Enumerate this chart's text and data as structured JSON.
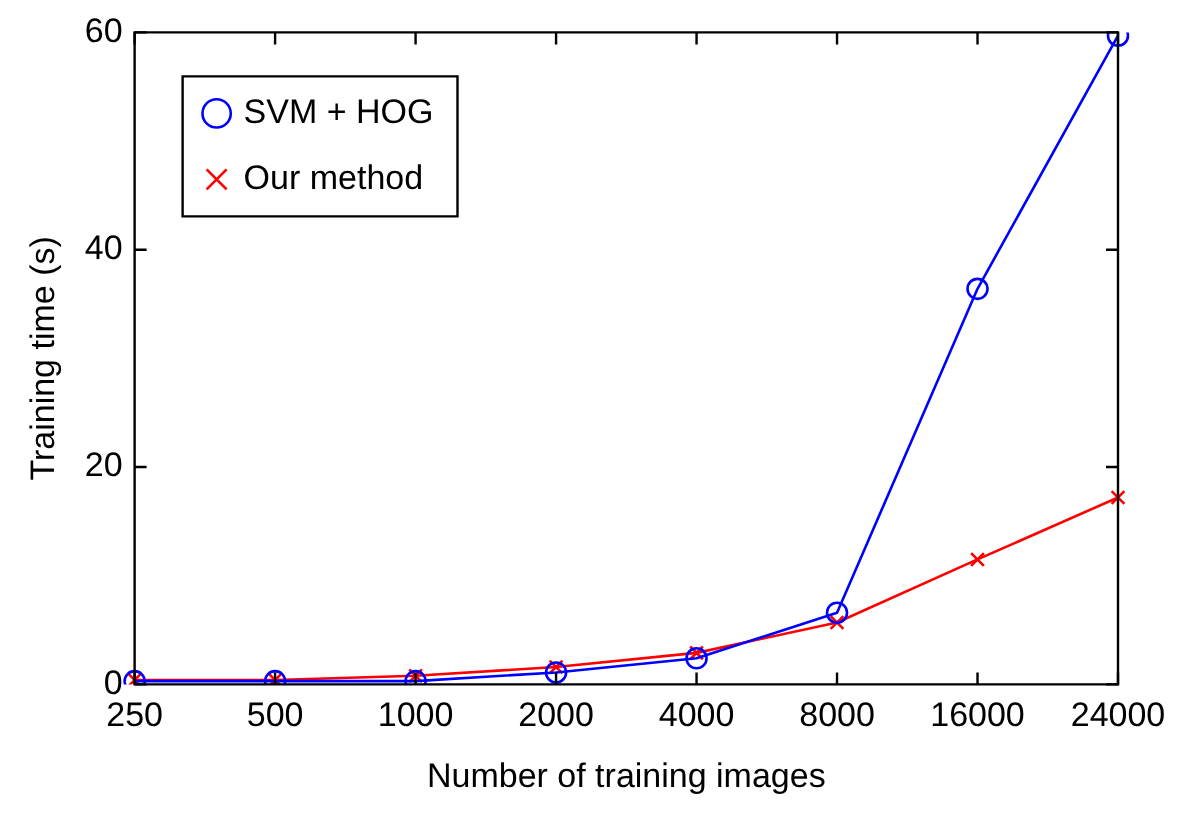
{
  "chart_data": {
    "type": "line",
    "xlabel": "Number of training images",
    "ylabel": "Training time (s)",
    "categories": [
      "250",
      "500",
      "1000",
      "2000",
      "4000",
      "8000",
      "16000",
      "24000"
    ],
    "series": [
      {
        "name": "SVM + HOG",
        "color": "#0000ff",
        "marker": "circle",
        "values": [
          0.3,
          0.3,
          0.3,
          1.1,
          2.4,
          6.6,
          36.4,
          59.7
        ]
      },
      {
        "name": "Our method",
        "color": "#ff0000",
        "marker": "cross",
        "values": [
          0.4,
          0.4,
          0.8,
          1.6,
          2.9,
          5.7,
          11.5,
          17.2
        ]
      }
    ],
    "ylim": [
      0,
      60
    ],
    "yticks": [
      0,
      20,
      40,
      60
    ],
    "grid": false,
    "legend": "top left",
    "line_style": "solid"
  }
}
